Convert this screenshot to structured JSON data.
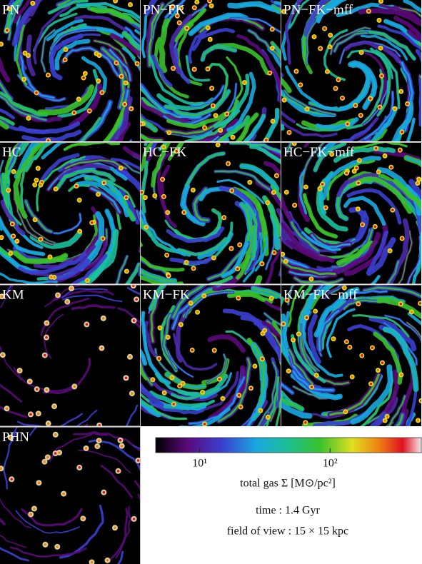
{
  "panels": [
    {
      "label": "PN"
    },
    {
      "label": "PN−FK"
    },
    {
      "label": "PN−FK−mff"
    },
    {
      "label": "HC"
    },
    {
      "label": "HC−FK"
    },
    {
      "label": "HC−FK−mff"
    },
    {
      "label": "KM"
    },
    {
      "label": "KM−FK"
    },
    {
      "label": "KM−FK−mff"
    },
    {
      "label": "PHN"
    }
  ],
  "colorbar": {
    "scale": "log",
    "lim": [
      4.6,
      500
    ],
    "ticks": [
      {
        "value": 10,
        "label": "10¹"
      },
      {
        "value": 100,
        "label": "10²"
      }
    ],
    "label": "total gas Σ [M⊙/pc²]"
  },
  "time": "time : 1.4 Gyr",
  "field_of_view": "field of view : 15 × 15 kpc"
}
